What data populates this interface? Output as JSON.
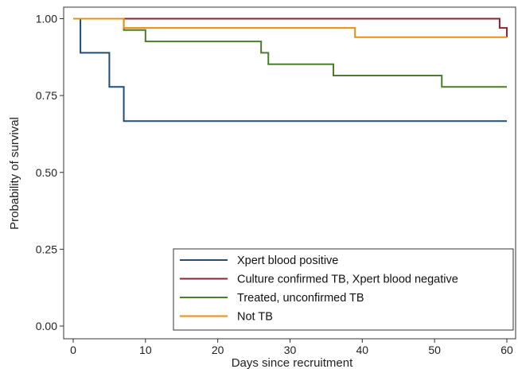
{
  "chart_data": {
    "type": "line",
    "step": true,
    "title": "",
    "xlabel": "Days since recruitment",
    "ylabel": "Probability of survival",
    "xlim": [
      0,
      61
    ],
    "ylim": [
      0,
      1
    ],
    "x_ticks": [
      0,
      10,
      20,
      30,
      40,
      50,
      60
    ],
    "y_ticks": [
      0.0,
      0.25,
      0.5,
      0.75,
      1.0
    ],
    "x_tick_labels": [
      "0",
      "10",
      "20",
      "30",
      "40",
      "50",
      "60"
    ],
    "y_tick_labels": [
      "0.00",
      "0.25",
      "0.50",
      "0.75",
      "1.00"
    ],
    "grid": false,
    "legend_position": "bottom-right",
    "series": [
      {
        "name": "Xpert blood positive",
        "color": "#1f4e79",
        "x": [
          0,
          1,
          5,
          7,
          60
        ],
        "y": [
          1.0,
          0.889,
          0.778,
          0.667,
          0.667
        ]
      },
      {
        "name": "Culture confirmed TB, Xpert blood negative",
        "color": "#8b2332",
        "x": [
          0,
          59,
          60,
          60
        ],
        "y": [
          1.0,
          0.97,
          0.94,
          0.94
        ]
      },
      {
        "name": "Treated, unconfirmed TB",
        "color": "#4a7d2c",
        "x": [
          0,
          7,
          10,
          26,
          27,
          36,
          51,
          60
        ],
        "y": [
          1.0,
          0.963,
          0.926,
          0.889,
          0.852,
          0.815,
          0.778,
          0.778
        ]
      },
      {
        "name": "Not TB",
        "color": "#e8900c",
        "x": [
          0,
          7,
          39,
          60
        ],
        "y": [
          1.0,
          0.97,
          0.94,
          0.94
        ]
      }
    ]
  }
}
